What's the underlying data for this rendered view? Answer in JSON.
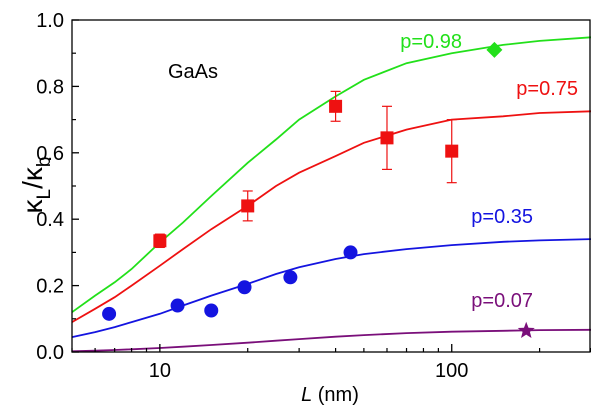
{
  "chart_data": {
    "type": "scatter",
    "x_scale": "log",
    "xlim": [
      5,
      300
    ],
    "ylim": [
      0,
      1.0
    ],
    "grid": false,
    "xlabel": {
      "italic": "L",
      "rest": " (nm)"
    },
    "ylabel": {
      "k1": "κ",
      "s1": "L",
      "slash": "/",
      "k2": "κ",
      "s2": "b"
    },
    "x_ticks": [
      10,
      100
    ],
    "x_tick_labels": [
      "10",
      "100"
    ],
    "y_ticks": [
      0,
      0.2,
      0.4,
      0.6,
      0.8,
      1.0
    ],
    "y_tick_labels": [
      "0.0",
      "0.2",
      "0.4",
      "0.6",
      "0.8",
      "1.0"
    ],
    "annotation": "GaAs",
    "series": [
      {
        "label": "p=0.98",
        "color": "#22e01a",
        "marker": "diamond",
        "curve_x": [
          5,
          6,
          7,
          8,
          10,
          12,
          15,
          20,
          25,
          30,
          40,
          50,
          70,
          100,
          150,
          200,
          300
        ],
        "curve_y": [
          0.12,
          0.17,
          0.21,
          0.25,
          0.33,
          0.39,
          0.47,
          0.57,
          0.64,
          0.7,
          0.77,
          0.82,
          0.87,
          0.9,
          0.925,
          0.937,
          0.948
        ],
        "points": [
          {
            "x": 140,
            "y": 0.91
          }
        ]
      },
      {
        "label": "p=0.75",
        "color": "#ee1111",
        "marker": "square",
        "curve_x": [
          5,
          6,
          7,
          8,
          10,
          12,
          15,
          20,
          25,
          30,
          40,
          50,
          70,
          100,
          150,
          200,
          300
        ],
        "curve_y": [
          0.09,
          0.13,
          0.165,
          0.2,
          0.26,
          0.31,
          0.37,
          0.44,
          0.5,
          0.54,
          0.59,
          0.63,
          0.67,
          0.7,
          0.71,
          0.72,
          0.725
        ],
        "points": [
          {
            "x": 10,
            "y": 0.335,
            "err": 0.02
          },
          {
            "x": 20,
            "y": 0.44,
            "err": 0.045
          },
          {
            "x": 40,
            "y": 0.74,
            "err": 0.045
          },
          {
            "x": 60,
            "y": 0.645,
            "err": 0.095
          },
          {
            "x": 100,
            "y": 0.605,
            "err": 0.095
          }
        ]
      },
      {
        "label": "p=0.35",
        "color": "#1414e0",
        "marker": "circle",
        "curve_x": [
          5,
          6,
          7,
          8,
          10,
          12,
          15,
          20,
          25,
          30,
          40,
          50,
          70,
          100,
          150,
          200,
          300
        ],
        "curve_y": [
          0.045,
          0.06,
          0.075,
          0.09,
          0.115,
          0.14,
          0.17,
          0.205,
          0.235,
          0.255,
          0.28,
          0.295,
          0.31,
          0.322,
          0.332,
          0.336,
          0.34
        ],
        "points": [
          {
            "x": 6.7,
            "y": 0.115
          },
          {
            "x": 11.5,
            "y": 0.14
          },
          {
            "x": 15,
            "y": 0.125
          },
          {
            "x": 19.5,
            "y": 0.195
          },
          {
            "x": 28,
            "y": 0.225
          },
          {
            "x": 45,
            "y": 0.3
          }
        ]
      },
      {
        "label": "p=0.07",
        "color": "#7a0f7a",
        "marker": "star",
        "curve_x": [
          5,
          6,
          7,
          8,
          10,
          12,
          15,
          20,
          25,
          30,
          40,
          50,
          70,
          100,
          150,
          200,
          300
        ],
        "curve_y": [
          0.002,
          0.004,
          0.006,
          0.008,
          0.012,
          0.016,
          0.021,
          0.028,
          0.034,
          0.039,
          0.046,
          0.051,
          0.057,
          0.061,
          0.064,
          0.066,
          0.067
        ],
        "points": [
          {
            "x": 180,
            "y": 0.064
          }
        ]
      }
    ]
  }
}
